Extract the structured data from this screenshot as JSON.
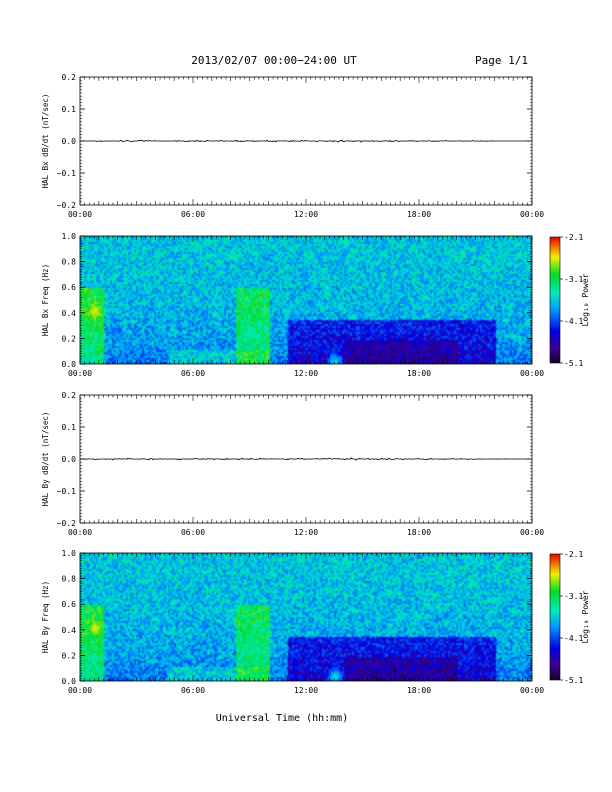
{
  "header": {
    "title": "2013/02/07  00:00−24:00 UT",
    "page": "Page 1/1"
  },
  "chart_data": [
    {
      "type": "line",
      "ylabel": "HAL Bx dB/dt (nT/sec)",
      "xlim": [
        "00:00",
        "24:00"
      ],
      "ylim": [
        -0.2,
        0.2
      ],
      "yticks": [
        "0.2",
        "0.1",
        "0.0",
        "−0.1",
        "−0.2"
      ],
      "xticks": [
        "00:00",
        "06:00",
        "12:00",
        "18:00",
        "00:00"
      ],
      "baseline": 0.0,
      "series": [
        {
          "x": [
            "00:00",
            "01:00",
            "06:00",
            "09:00",
            "12:00",
            "14:00",
            "16:00",
            "19:00",
            "24:00"
          ],
          "values": [
            0.0,
            0.003,
            0.002,
            0.003,
            0.002,
            0.004,
            0.003,
            0.002,
            0.0
          ]
        }
      ]
    },
    {
      "type": "heatmap",
      "ylabel": "HAL Bx Freq (Hz)",
      "xlim": [
        "00:00",
        "24:00"
      ],
      "ylim": [
        0.0,
        1.0
      ],
      "yticks": [
        "1.0",
        "0.8",
        "0.6",
        "0.4",
        "0.2",
        "0.0"
      ],
      "xticks": [
        "00:00",
        "06:00",
        "12:00",
        "18:00",
        "00:00"
      ],
      "colorbar": {
        "label": "Log₁₀ Power",
        "range": [
          -5.1,
          -2.1
        ],
        "ticks": [
          "-2.1",
          "-3.1",
          "-4.1",
          "-5.1"
        ]
      },
      "features": [
        {
          "time": "00:45",
          "freq": 0.42,
          "log_power": -2.6
        },
        {
          "time": "09:00",
          "freq": 0.25,
          "log_power": -3.4
        },
        {
          "time": "13:30",
          "freq": 0.02,
          "log_power": -3.5
        }
      ]
    },
    {
      "type": "line",
      "ylabel": "HAL By dB/dt (nT/sec)",
      "xlim": [
        "00:00",
        "24:00"
      ],
      "ylim": [
        -0.2,
        0.2
      ],
      "yticks": [
        "0.2",
        "0.1",
        "0.0",
        "−0.1",
        "−0.2"
      ],
      "xticks": [
        "00:00",
        "06:00",
        "12:00",
        "18:00",
        "00:00"
      ],
      "baseline": 0.0,
      "series": [
        {
          "x": [
            "00:00",
            "01:00",
            "06:00",
            "09:00",
            "12:00",
            "14:00",
            "16:00",
            "19:00",
            "24:00"
          ],
          "values": [
            0.0,
            0.003,
            0.002,
            0.003,
            0.002,
            0.004,
            0.003,
            0.002,
            0.0
          ]
        }
      ]
    },
    {
      "type": "heatmap",
      "ylabel": "HAL By Freq (Hz)",
      "xlim": [
        "00:00",
        "24:00"
      ],
      "ylim": [
        0.0,
        1.0
      ],
      "yticks": [
        "1.0",
        "0.8",
        "0.6",
        "0.4",
        "0.2",
        "0.0"
      ],
      "xticks": [
        "00:00",
        "06:00",
        "12:00",
        "18:00",
        "00:00"
      ],
      "colorbar": {
        "label": "Log₁₀ Power",
        "range": [
          -5.1,
          -2.1
        ],
        "ticks": [
          "-2.1",
          "-3.1",
          "-4.1",
          "-5.1"
        ]
      },
      "features": [
        {
          "time": "00:45",
          "freq": 0.42,
          "log_power": -2.6
        },
        {
          "time": "09:00",
          "freq": 0.3,
          "log_power": -3.3
        },
        {
          "time": "13:30",
          "freq": 0.04,
          "log_power": -3.5
        }
      ]
    }
  ],
  "footer": {
    "xlabel": "Universal Time (hh:mm)"
  }
}
